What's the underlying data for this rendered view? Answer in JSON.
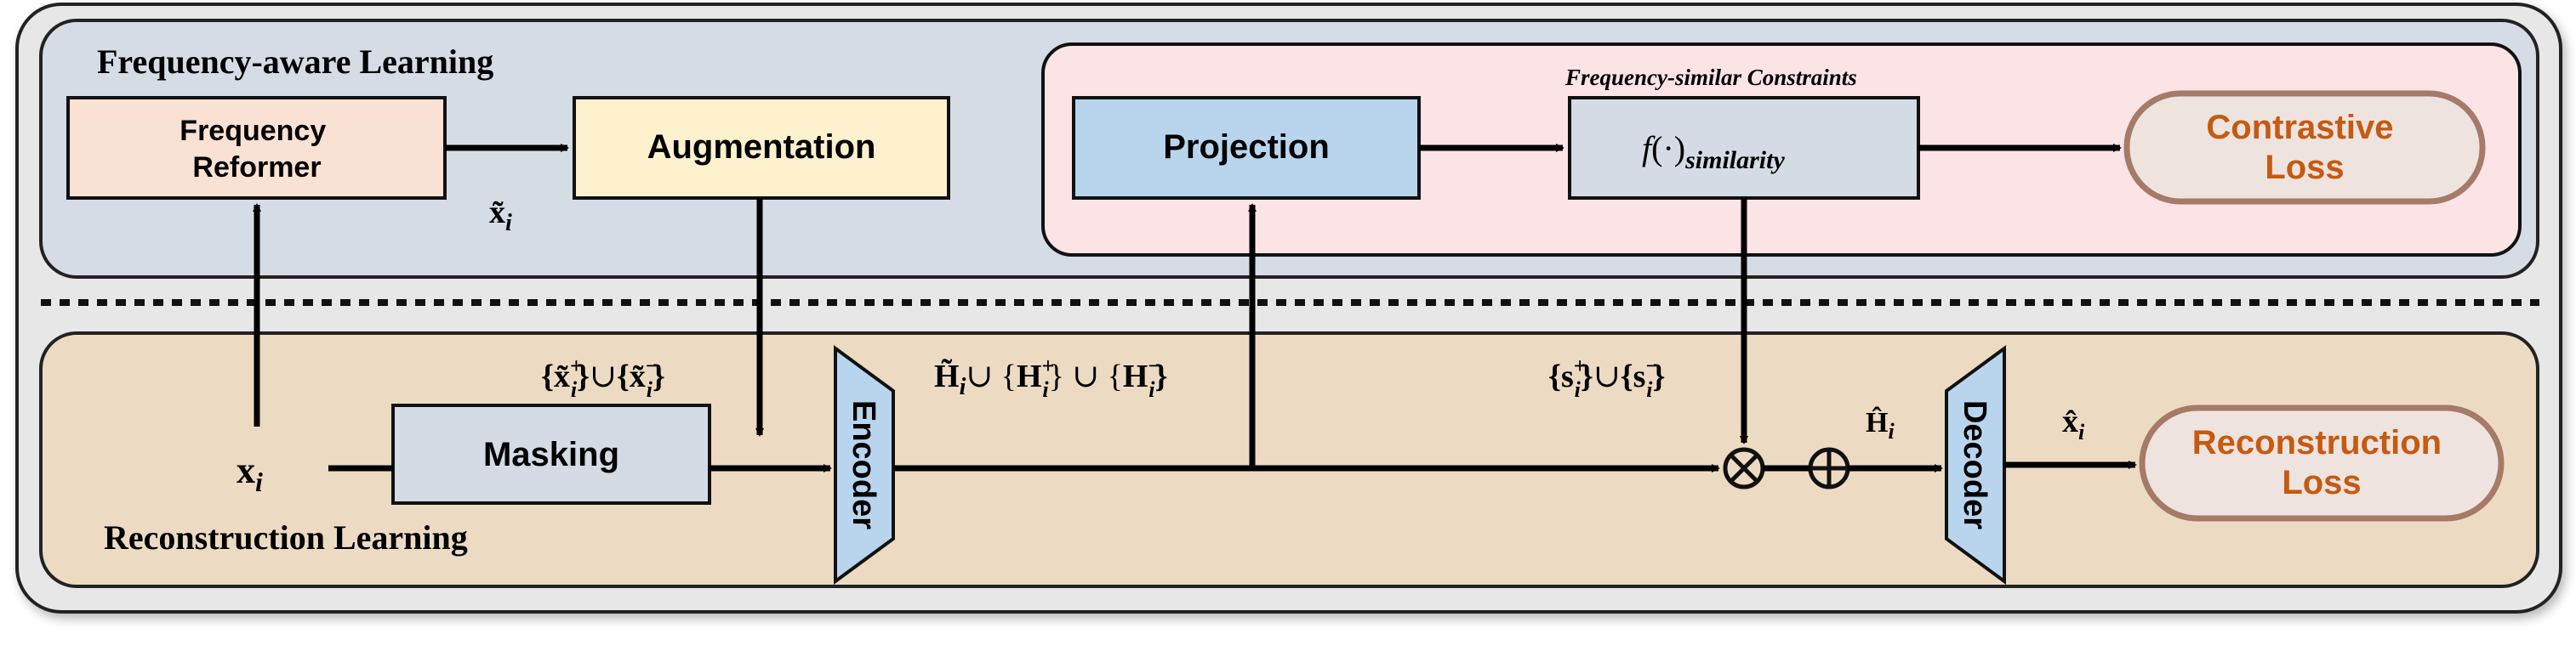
{
  "colors": {
    "outer_bg": "#e7e7e8",
    "freq_panel": "#d6dce6",
    "recon_panel": "#ecdbc2",
    "constraint_panel": "#fbe3e6",
    "freq_reformer": "#f9e2d4",
    "augmentation": "#fdf1cd",
    "projection": "#b9d5ee",
    "similarity": "#d5dbe5",
    "masking": "#d5dbe5",
    "loss_fill": "#eee3df",
    "loss_stroke": "#a57a67",
    "loss_text": "#c55a11",
    "trapezoid": "#b9d5ee"
  },
  "panels": {
    "frequency_title": "Frequency-aware Learning",
    "reconstruction_title": "Reconstruction Learning",
    "constraints_title": "Frequency-similar Constraints"
  },
  "boxes": {
    "freq_reformer_line1": "Frequency",
    "freq_reformer_line2": "Reformer",
    "augmentation": "Augmentation",
    "projection": "Projection",
    "similarity_f": "f",
    "similarity_paren": "(·)",
    "similarity_sub": "similarity",
    "masking": "Masking",
    "encoder": "Encoder",
    "decoder": "Decoder",
    "contrastive_line1": "Contrastive",
    "contrastive_line2": "Loss",
    "reconstruction_line1": "Reconstruction",
    "reconstruction_line2": "Loss"
  },
  "labels": {
    "x_tilde_i": {
      "base": "x̃",
      "sub": "i"
    },
    "x_i": {
      "base": "x",
      "sub": "i"
    },
    "aug_set": {
      "open1": "{",
      "base1": "x̃",
      "sup1": "+",
      "sub1": "i",
      "close1": "}",
      "union": "∪",
      "open2": "{",
      "base2": "x̃",
      "sup2": "−",
      "sub2": "i",
      "close2": "}"
    },
    "h_set": {
      "base1": "H̃",
      "sub1": "i",
      "union1": "∪ {",
      "base2": "H",
      "sup2": "+",
      "sub2": "i",
      "close2": "} ∪ {",
      "base3": "H",
      "sup3": "−",
      "sub3": "i",
      "close3": "}"
    },
    "s_set": {
      "open1": "{",
      "base1": "s",
      "sup1": "+",
      "sub1": "i",
      "close1": "}",
      "union": "∪",
      "open2": "{",
      "base2": "s",
      "sup2": "−",
      "sub2": "i",
      "close2": "}"
    },
    "h_hat_i": {
      "base": "Ĥ",
      "sub": "i"
    },
    "x_hat_i": {
      "base": "x̂",
      "sub": "i"
    }
  },
  "operators": {
    "multiply": "⊗",
    "add": "⊕"
  }
}
